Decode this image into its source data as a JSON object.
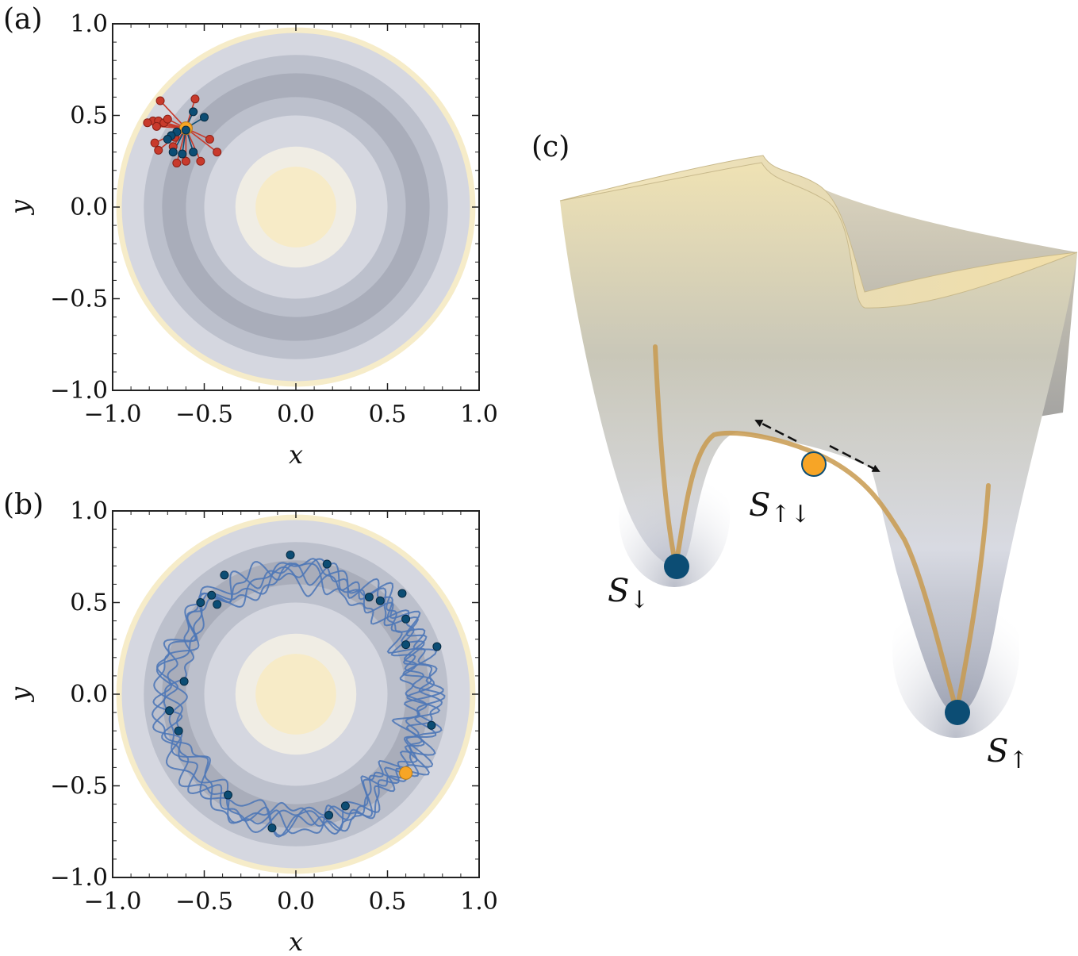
{
  "panels": {
    "a": {
      "label": "(a)",
      "xlabel": "x",
      "ylabel": "y",
      "xticks": [
        "−1.0",
        "−0.5",
        "0.0",
        "0.5",
        "1.0"
      ],
      "yticks": [
        "1.0",
        "0.5",
        "0.0",
        "−0.5",
        "−1.0"
      ]
    },
    "b": {
      "label": "(b)",
      "xlabel": "x",
      "ylabel": "y",
      "xticks": [
        "−1.0",
        "−0.5",
        "0.0",
        "0.5",
        "1.0"
      ],
      "yticks": [
        "1.0",
        "0.5",
        "0.0",
        "−0.5",
        "−1.0"
      ]
    },
    "c": {
      "label": "(c)",
      "states": {
        "down": {
          "symbol": "S",
          "sub": "↓"
        },
        "mid": {
          "symbol": "S",
          "sub": "↑↓"
        },
        "up": {
          "symbol": "S",
          "sub": "↑"
        }
      }
    }
  },
  "chart_data": {
    "type": "scatter",
    "xlim": [
      -1.0,
      1.0
    ],
    "ylim": [
      -1.0,
      1.0
    ],
    "grid": false,
    "contour_radii": [
      0.98,
      0.95,
      0.83,
      0.73,
      0.6,
      0.5,
      0.33,
      0.22
    ],
    "contour_colors": [
      "#f6ecc9",
      "#d5d7e0",
      "#bcc0cc",
      "#a9adba",
      "#bcc0cc",
      "#d5d7e0",
      "#f0ede4",
      "#f7ebc7"
    ],
    "panel_a": {
      "center": [
        -0.6,
        0.43
      ],
      "red_points": [
        [
          -0.74,
          0.58
        ],
        [
          -0.78,
          0.47
        ],
        [
          -0.81,
          0.46
        ],
        [
          -0.75,
          0.47
        ],
        [
          -0.72,
          0.46
        ],
        [
          -0.76,
          0.44
        ],
        [
          -0.7,
          0.48
        ],
        [
          -0.77,
          0.35
        ],
        [
          -0.75,
          0.31
        ],
        [
          -0.67,
          0.33
        ],
        [
          -0.65,
          0.24
        ],
        [
          -0.6,
          0.25
        ],
        [
          -0.52,
          0.25
        ],
        [
          -0.47,
          0.37
        ],
        [
          -0.43,
          0.3
        ],
        [
          -0.55,
          0.59
        ],
        [
          -0.66,
          0.38
        ]
      ],
      "blue_points": [
        [
          -0.56,
          0.52
        ],
        [
          -0.5,
          0.49
        ],
        [
          -0.65,
          0.41
        ],
        [
          -0.68,
          0.39
        ],
        [
          -0.7,
          0.37
        ],
        [
          -0.67,
          0.3
        ],
        [
          -0.62,
          0.29
        ],
        [
          -0.56,
          0.3
        ],
        [
          -0.6,
          0.42
        ]
      ]
    },
    "panel_b": {
      "orange_point": [
        0.6,
        -0.43
      ],
      "blue_points": [
        [
          -0.03,
          0.76
        ],
        [
          0.17,
          0.71
        ],
        [
          -0.39,
          0.65
        ],
        [
          -0.46,
          0.54
        ],
        [
          -0.52,
          0.5
        ],
        [
          -0.43,
          0.49
        ],
        [
          0.4,
          0.53
        ],
        [
          0.46,
          0.51
        ],
        [
          0.58,
          0.55
        ],
        [
          0.6,
          0.41
        ],
        [
          0.6,
          0.27
        ],
        [
          0.77,
          0.26
        ],
        [
          -0.61,
          0.07
        ],
        [
          -0.69,
          -0.09
        ],
        [
          -0.64,
          -0.2
        ],
        [
          0.74,
          -0.17
        ],
        [
          -0.37,
          -0.55
        ],
        [
          0.27,
          -0.61
        ],
        [
          0.18,
          -0.66
        ],
        [
          -0.13,
          -0.73
        ]
      ]
    }
  },
  "colors": {
    "red": "#c83a2c",
    "blue": "#0c4d74",
    "orange": "#f7a526",
    "trajectory": "#4f78b7",
    "rope": "#c89a4f"
  }
}
